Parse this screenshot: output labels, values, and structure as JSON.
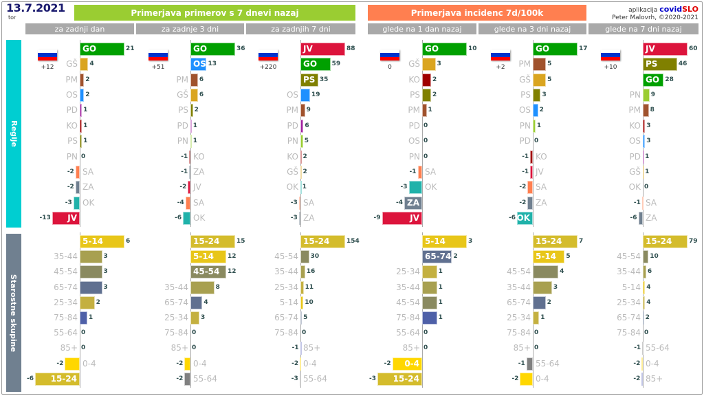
{
  "header": {
    "date": "13.7.2021",
    "weekday": "tor",
    "app_prefix": "aplikacija",
    "app_name_1": "covid",
    "app_name_2": "SLO",
    "author": "Peter Malovrh, ©2020-2021"
  },
  "colors": {
    "group1": "#9acd32",
    "group2": "#ff7f50",
    "regions_band": "#00ced1",
    "ages_band": "#708090"
  },
  "groups": [
    {
      "title": "Primerjava primerov s 7 dnevi nazaj"
    },
    {
      "title": "Primerjava incidenc 7d/100k"
    }
  ],
  "sections": {
    "regions": "Regije",
    "ages": "Starostne skupine"
  },
  "region_colors": {
    "GO": "#00a000",
    "GŠ": "#daa520",
    "PM": "#a0522d",
    "OS": "#1e90ff",
    "PD": "#a020a0",
    "KO": "#a00000",
    "PS": "#808000",
    "PN": "#9acd32",
    "SA": "#ff7f50",
    "ZA": "#708090",
    "OK": "#20b2aa",
    "JV": "#dc143c"
  },
  "age_colors": {
    "0-4": "#ffd700",
    "5-14": "#e8c619",
    "15-24": "#d4bc2c",
    "25-34": "#c4b040",
    "35-44": "#a8a050",
    "45-54": "#8a8a60",
    "55-64": "#808080",
    "65-74": "#607090",
    "75-84": "#4e60a8",
    "85+": "#6870c0"
  },
  "chart_data": [
    {
      "type": "bar",
      "orientation": "horizontal",
      "title": "za zadnji dan",
      "total": "+12",
      "regions": {
        "categories": [
          "GO",
          "GŠ",
          "PM",
          "OS",
          "PD",
          "KO",
          "PS",
          "PN",
          "SA",
          "ZA",
          "OK",
          "JV"
        ],
        "values": [
          21,
          4,
          2,
          2,
          1,
          1,
          1,
          0,
          -2,
          -2,
          -3,
          -13
        ]
      },
      "ages": {
        "categories": [
          "5-14",
          "35-44",
          "45-54",
          "65-74",
          "25-34",
          "75-84",
          "55-64",
          "85+",
          "0-4",
          "15-24"
        ],
        "values": [
          6,
          3,
          3,
          3,
          2,
          1,
          0,
          0,
          -2,
          -6
        ]
      }
    },
    {
      "type": "bar",
      "orientation": "horizontal",
      "title": "za zadnje 3 dni",
      "total": "+51",
      "regions": {
        "categories": [
          "GO",
          "OS",
          "PM",
          "GŠ",
          "PS",
          "PD",
          "PN",
          "KO",
          "ZA",
          "JV",
          "SA",
          "OK"
        ],
        "values": [
          36,
          13,
          6,
          6,
          2,
          1,
          1,
          -1,
          -1,
          -2,
          -4,
          -6
        ]
      },
      "ages": {
        "categories": [
          "15-24",
          "5-14",
          "45-54",
          "35-44",
          "65-74",
          "25-34",
          "75-84",
          "85+",
          "0-4",
          "55-64"
        ],
        "values": [
          15,
          12,
          12,
          8,
          4,
          3,
          0,
          0,
          -2,
          -2
        ]
      }
    },
    {
      "type": "bar",
      "orientation": "horizontal",
      "title": "za zadnjih 7 dni",
      "total": "+220",
      "regions": {
        "categories": [
          "JV",
          "GO",
          "PS",
          "OS",
          "PM",
          "PD",
          "PN",
          "KO",
          "GŠ",
          "OK",
          "SA",
          "ZA"
        ],
        "values": [
          88,
          59,
          35,
          19,
          9,
          6,
          5,
          2,
          2,
          1,
          -3,
          -3
        ]
      },
      "ages": {
        "categories": [
          "15-24",
          "45-54",
          "35-44",
          "25-34",
          "5-14",
          "65-74",
          "75-84",
          "85+",
          "0-4",
          "55-64"
        ],
        "values": [
          154,
          30,
          16,
          11,
          10,
          5,
          0,
          -1,
          -2,
          -3
        ]
      }
    },
    {
      "type": "bar",
      "orientation": "horizontal",
      "title": "glede na 1 dan nazaj",
      "total": "0",
      "regions": {
        "categories": [
          "GO",
          "GŠ",
          "KO",
          "PS",
          "PM",
          "PD",
          "OS",
          "PN",
          "SA",
          "OK",
          "ZA",
          "JV"
        ],
        "values": [
          10,
          3,
          2,
          2,
          1,
          0,
          0,
          0,
          -1,
          -3,
          -4,
          -9
        ]
      },
      "ages": {
        "categories": [
          "5-14",
          "65-74",
          "25-34",
          "35-44",
          "45-54",
          "75-84",
          "55-64",
          "85+",
          "0-4",
          "15-24"
        ],
        "values": [
          3,
          2,
          1,
          1,
          1,
          1,
          0,
          0,
          -2,
          -3
        ]
      }
    },
    {
      "type": "bar",
      "orientation": "horizontal",
      "title": "glede na 3 dni nazaj",
      "total": "+2",
      "regions": {
        "categories": [
          "GO",
          "PM",
          "GŠ",
          "PS",
          "OS",
          "PN",
          "PD",
          "KO",
          "JV",
          "SA",
          "ZA",
          "OK"
        ],
        "values": [
          17,
          5,
          5,
          3,
          2,
          1,
          0,
          -1,
          -1,
          -2,
          -2,
          -6
        ]
      },
      "ages": {
        "categories": [
          "15-24",
          "5-14",
          "45-54",
          "35-44",
          "65-74",
          "25-34",
          "75-84",
          "85+",
          "55-64",
          "0-4"
        ],
        "values": [
          7,
          5,
          4,
          3,
          2,
          1,
          0,
          0,
          -1,
          -2
        ]
      }
    },
    {
      "type": "bar",
      "orientation": "horizontal",
      "title": "glede na 7 dni nazaj",
      "total": "+10",
      "regions": {
        "categories": [
          "JV",
          "PS",
          "GO",
          "PN",
          "PM",
          "KO",
          "OS",
          "PD",
          "GŠ",
          "OK",
          "SA",
          "ZA"
        ],
        "values": [
          60,
          46,
          28,
          9,
          8,
          3,
          3,
          1,
          1,
          0,
          -1,
          -6
        ]
      },
      "ages": {
        "categories": [
          "15-24",
          "45-54",
          "35-44",
          "5-14",
          "25-34",
          "65-74",
          "75-84",
          "55-64",
          "0-4",
          "85+"
        ],
        "values": [
          79,
          10,
          6,
          4,
          4,
          2,
          0,
          -1,
          -2,
          -2
        ]
      }
    }
  ]
}
